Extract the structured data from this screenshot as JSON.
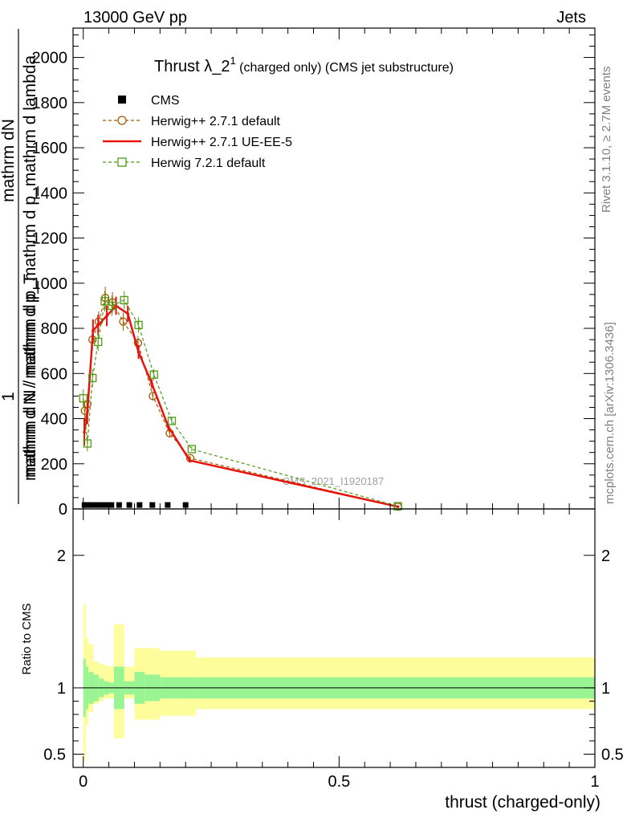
{
  "header": {
    "left": "13000 GeV pp",
    "right": "Jets"
  },
  "title": {
    "main": "Thrust λ_2",
    "sup": "1",
    "rest": " (charged only) (CMS jet substructure)"
  },
  "side_labels": {
    "right_top": "Rivet 3.1.10, ≥ 2.7M events",
    "right_bottom": "mcplots.cern.ch [arXiv:1306.3436]"
  },
  "watermark": "CMS_2021_I1920187",
  "y_label_main": {
    "numerator_1": "1",
    "numerator_2": "mathrm dN",
    "denominator_1": "mathrm d N / mathrm d p_mathrm d p_mathrm d lambda",
    "denominator_2": "mathrm d N / mathrm d p_T"
  },
  "y_label_ratio": "Ratio to CMS",
  "x_label": "thrust (charged-only)",
  "legend": [
    {
      "name": "CMS",
      "style": "data",
      "color": "#000000"
    },
    {
      "name": "Herwig++ 2.7.1 default",
      "style": "circle-dashed",
      "color": "#a05a00"
    },
    {
      "name": "Herwig++ 2.7.1 UE-EE-5",
      "style": "solid",
      "color": "#e8120c"
    },
    {
      "name": "Herwig 7.2.1 default",
      "style": "square-dashed",
      "color": "#4f9a13"
    }
  ],
  "chart_data": {
    "type": "line",
    "xlim": [
      -0.02,
      1.0
    ],
    "main_ylim": [
      0,
      2130
    ],
    "ratio_ylim": [
      0.4,
      2.35
    ],
    "x_ticks": [
      0,
      0.5,
      1
    ],
    "x_tick_labels": [
      "0",
      "0.5",
      "1"
    ],
    "main_y_ticks": [
      0,
      200,
      400,
      600,
      800,
      1000,
      1200,
      1400,
      1600,
      1800,
      2000
    ],
    "main_y_tick_labels": [
      "0",
      "200",
      "400",
      "600",
      "800",
      "1000",
      "1200",
      "1400",
      "1600",
      "1800",
      "2000"
    ],
    "ratio_y_ticks": [
      0.5,
      1,
      2
    ],
    "ratio_y_tick_labels": [
      "0.5",
      "1",
      "2"
    ],
    "bin_edges": [
      0,
      0.005,
      0.01,
      0.02,
      0.03,
      0.04,
      0.05,
      0.06,
      0.08,
      0.1,
      0.12,
      0.15,
      0.18,
      0.22,
      1.0
    ],
    "series": [
      {
        "name": "CMS",
        "x": [
          0.0025,
          0.0075,
          0.015,
          0.025,
          0.035,
          0.045,
          0.055,
          0.07,
          0.09,
          0.11,
          0.135,
          0.165,
          0.2
        ],
        "y": [
          5,
          5,
          5,
          5,
          5,
          5,
          5,
          5,
          5,
          5,
          5,
          5,
          5
        ]
      },
      {
        "name": "Herwig++ 2.7.1 default",
        "x": [
          0.003,
          0.008,
          0.018,
          0.03,
          0.043,
          0.057,
          0.078,
          0.107,
          0.136,
          0.169,
          0.209,
          0.615
        ],
        "y": [
          435,
          465,
          750,
          830,
          935,
          915,
          830,
          735,
          500,
          335,
          225,
          10
        ],
        "err": [
          40,
          40,
          45,
          45,
          50,
          45,
          40,
          30,
          20,
          15,
          10,
          2
        ]
      },
      {
        "name": "Herwig++ 2.7.1 UE-EE-5",
        "x": [
          0.002,
          0.008,
          0.019,
          0.029,
          0.046,
          0.064,
          0.087,
          0.108,
          0.134,
          0.166,
          0.208,
          0.615
        ],
        "y": [
          340,
          430,
          790,
          815,
          855,
          900,
          865,
          695,
          555,
          365,
          215,
          10
        ],
        "err": [
          60,
          55,
          50,
          45,
          45,
          40,
          35,
          30,
          20,
          15,
          10,
          2
        ]
      },
      {
        "name": "Herwig 7.2.1 default",
        "x": [
          0.0,
          0.008,
          0.018,
          0.029,
          0.042,
          0.056,
          0.08,
          0.108,
          0.138,
          0.173,
          0.212,
          0.615
        ],
        "y": [
          490,
          290,
          580,
          740,
          920,
          900,
          925,
          815,
          595,
          390,
          265,
          12
        ],
        "err": [
          40,
          35,
          40,
          40,
          45,
          45,
          40,
          35,
          25,
          15,
          10,
          2
        ]
      }
    ],
    "ratio_bands": {
      "inner_lo": [
        0.78,
        0.84,
        0.88,
        0.9,
        0.93,
        0.95,
        0.96,
        0.84,
        0.95,
        0.88,
        0.9,
        0.92,
        0.92,
        0.92
      ],
      "inner_hi": [
        1.22,
        1.16,
        1.12,
        1.1,
        1.07,
        1.05,
        1.04,
        1.16,
        1.05,
        1.12,
        1.1,
        1.08,
        1.08,
        1.08
      ],
      "outer_lo": [
        0.45,
        0.72,
        0.82,
        0.88,
        0.9,
        0.92,
        0.92,
        0.62,
        0.92,
        0.76,
        0.76,
        0.79,
        0.79,
        0.84
      ],
      "outer_hi": [
        1.63,
        1.38,
        1.33,
        1.2,
        1.18,
        1.17,
        1.16,
        1.48,
        1.16,
        1.3,
        1.3,
        1.28,
        1.28,
        1.23
      ]
    }
  },
  "colors": {
    "band_inner": "#99f593",
    "band_outer": "#fdfd9b",
    "frame": "#000000",
    "side_text": "#808080"
  }
}
